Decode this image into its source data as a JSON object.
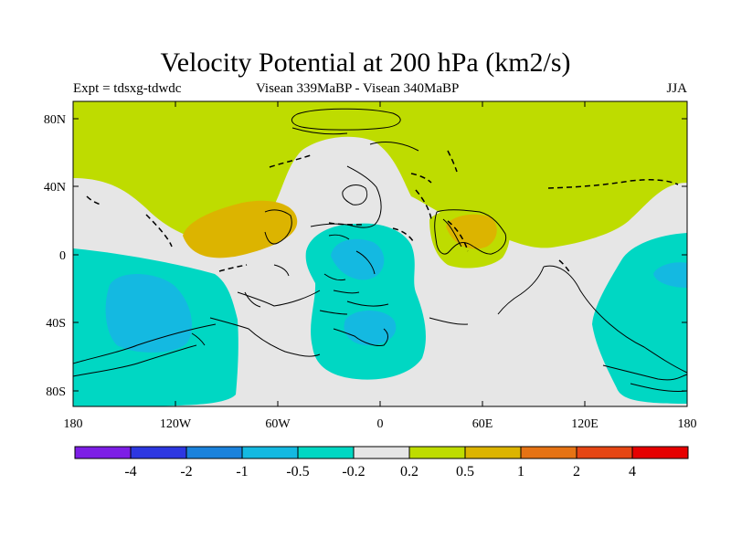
{
  "title": "Velocity Potential at 200 hPa (km2/s)",
  "subtitle_left": "Expt = tdsxg-tdwdc",
  "subtitle_center": "Visean 339MaBP - Visean  340MaBP",
  "subtitle_right": "JJA",
  "lat_labels": [
    "80N",
    "40N",
    "0",
    "40S",
    "80S"
  ],
  "lon_labels": [
    "180",
    "120W",
    "60W",
    "0",
    "60E",
    "120E",
    "180"
  ],
  "colorbar": {
    "colors": [
      "#7d1ee6",
      "#2d37e1",
      "#1a82dc",
      "#14b9e1",
      "#00d7c3",
      "#e6e6e6",
      "#bedc00",
      "#dcb400",
      "#e67314",
      "#e64614",
      "#e60000"
    ],
    "labels": [
      "-4",
      "-2",
      "-1",
      "-0.5",
      "-0.2",
      "0.2",
      "0.5",
      "1",
      "2",
      "4"
    ]
  },
  "map_colors": {
    "neutral": "#e6e6e6",
    "pos1": "#bedc00",
    "pos2": "#dcb400",
    "neg1": "#00d7c3",
    "neg2": "#14b9e1"
  }
}
